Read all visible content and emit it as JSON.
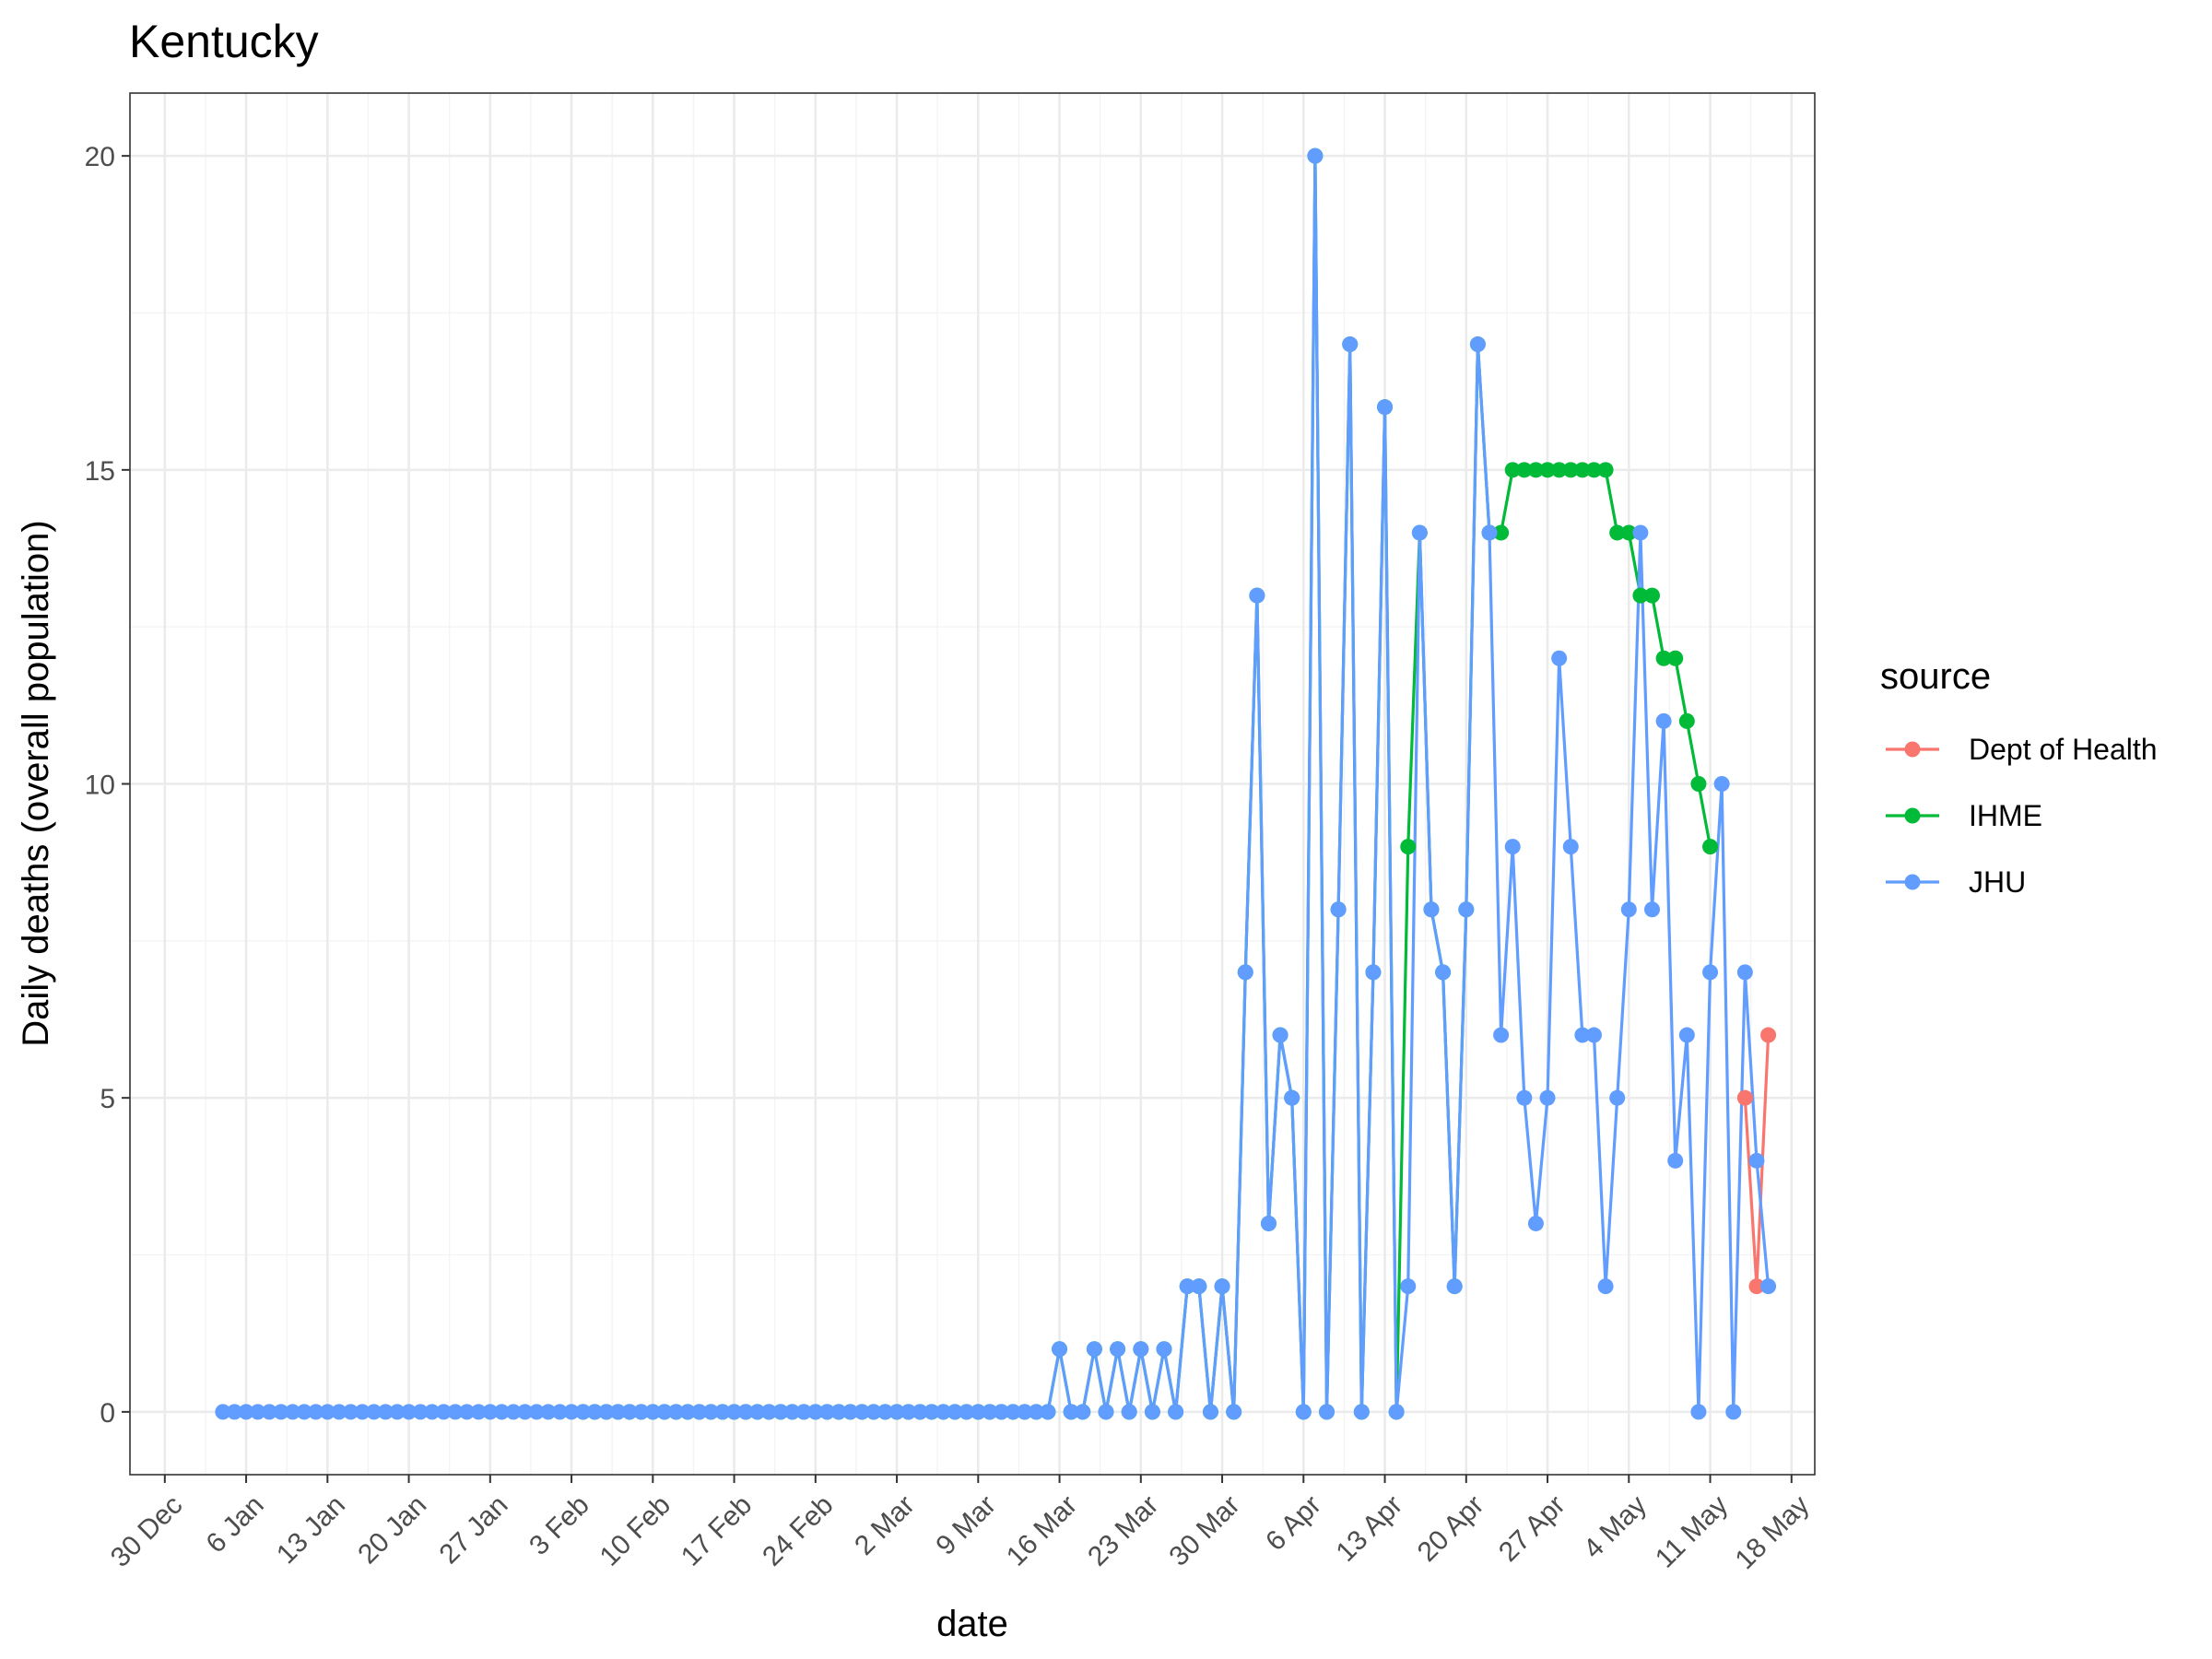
{
  "chart_data": {
    "type": "line",
    "title": "Kentucky",
    "xlabel": "date",
    "ylabel": "Daily deaths (overall population)",
    "x_axis": {
      "type": "date",
      "range": [
        "2019-12-27",
        "2020-05-20"
      ],
      "tick_dates": [
        "2019-12-30",
        "2020-01-06",
        "2020-01-13",
        "2020-01-20",
        "2020-01-27",
        "2020-02-03",
        "2020-02-10",
        "2020-02-17",
        "2020-02-24",
        "2020-03-02",
        "2020-03-09",
        "2020-03-16",
        "2020-03-23",
        "2020-03-30",
        "2020-04-06",
        "2020-04-13",
        "2020-04-20",
        "2020-04-27",
        "2020-05-04",
        "2020-05-11",
        "2020-05-18"
      ],
      "tick_labels": [
        "30 Dec",
        "6 Jan",
        "13 Jan",
        "20 Jan",
        "27 Jan",
        "3 Feb",
        "10 Feb",
        "17 Feb",
        "24 Feb",
        "2 Mar",
        "9 Mar",
        "16 Mar",
        "23 Mar",
        "30 Mar",
        "6 Apr",
        "13 Apr",
        "20 Apr",
        "27 Apr",
        "4 May",
        "11 May",
        "18 May"
      ]
    },
    "y_axis": {
      "range": [
        -1,
        21
      ],
      "ticks": [
        0,
        5,
        10,
        15,
        20
      ],
      "tick_labels": [
        "0",
        "5",
        "10",
        "15",
        "20"
      ]
    },
    "grid": true,
    "legend": {
      "title": "source",
      "position": "right"
    },
    "series": [
      {
        "name": "Dept of Health",
        "color": "#F8766D",
        "points": [
          [
            "2020-05-14",
            5
          ],
          [
            "2020-05-15",
            2
          ],
          [
            "2020-05-16",
            6
          ]
        ]
      },
      {
        "name": "IHME",
        "color": "#00BA38",
        "points": [
          [
            "2020-02-04",
            0
          ],
          [
            "2020-02-05",
            0
          ],
          [
            "2020-02-06",
            0
          ],
          [
            "2020-02-07",
            0
          ],
          [
            "2020-02-08",
            0
          ],
          [
            "2020-02-09",
            0
          ],
          [
            "2020-02-10",
            0
          ],
          [
            "2020-02-11",
            0
          ],
          [
            "2020-02-12",
            0
          ],
          [
            "2020-02-13",
            0
          ],
          [
            "2020-02-14",
            0
          ],
          [
            "2020-02-15",
            0
          ],
          [
            "2020-02-16",
            0
          ],
          [
            "2020-02-17",
            0
          ],
          [
            "2020-02-18",
            0
          ],
          [
            "2020-02-19",
            0
          ],
          [
            "2020-02-20",
            0
          ],
          [
            "2020-02-21",
            0
          ],
          [
            "2020-02-22",
            0
          ],
          [
            "2020-02-23",
            0
          ],
          [
            "2020-02-24",
            0
          ],
          [
            "2020-02-25",
            0
          ],
          [
            "2020-02-26",
            0
          ],
          [
            "2020-02-27",
            0
          ],
          [
            "2020-02-28",
            0
          ],
          [
            "2020-02-29",
            0
          ],
          [
            "2020-03-01",
            0
          ],
          [
            "2020-03-02",
            0
          ],
          [
            "2020-03-03",
            0
          ],
          [
            "2020-03-04",
            0
          ],
          [
            "2020-03-05",
            0
          ],
          [
            "2020-03-06",
            0
          ],
          [
            "2020-03-07",
            0
          ],
          [
            "2020-03-08",
            0
          ],
          [
            "2020-03-09",
            0
          ],
          [
            "2020-03-10",
            0
          ],
          [
            "2020-03-11",
            0
          ],
          [
            "2020-03-12",
            0
          ],
          [
            "2020-03-13",
            0
          ],
          [
            "2020-03-14",
            0
          ],
          [
            "2020-03-15",
            0
          ],
          [
            "2020-03-16",
            1
          ],
          [
            "2020-03-17",
            0
          ],
          [
            "2020-03-18",
            0
          ],
          [
            "2020-03-19",
            1
          ],
          [
            "2020-03-20",
            0
          ],
          [
            "2020-03-21",
            1
          ],
          [
            "2020-03-22",
            0
          ],
          [
            "2020-03-23",
            1
          ],
          [
            "2020-03-24",
            0
          ],
          [
            "2020-03-25",
            1
          ],
          [
            "2020-03-26",
            0
          ],
          [
            "2020-03-27",
            2
          ],
          [
            "2020-03-28",
            2
          ],
          [
            "2020-03-29",
            0
          ],
          [
            "2020-03-30",
            2
          ],
          [
            "2020-03-31",
            0
          ],
          [
            "2020-04-01",
            7
          ],
          [
            "2020-04-02",
            13
          ],
          [
            "2020-04-03",
            3
          ],
          [
            "2020-04-04",
            6
          ],
          [
            "2020-04-05",
            5
          ],
          [
            "2020-04-06",
            0
          ],
          [
            "2020-04-07",
            20
          ],
          [
            "2020-04-08",
            0
          ],
          [
            "2020-04-09",
            8
          ],
          [
            "2020-04-10",
            17
          ],
          [
            "2020-04-11",
            0
          ],
          [
            "2020-04-12",
            7
          ],
          [
            "2020-04-13",
            16
          ],
          [
            "2020-04-14",
            0
          ],
          [
            "2020-04-15",
            9
          ],
          [
            "2020-04-16",
            14
          ],
          [
            "2020-04-17",
            8
          ],
          [
            "2020-04-18",
            7
          ],
          [
            "2020-04-19",
            2
          ],
          [
            "2020-04-20",
            8
          ],
          [
            "2020-04-21",
            17
          ],
          [
            "2020-04-22",
            14
          ],
          [
            "2020-04-23",
            14
          ],
          [
            "2020-04-24",
            15
          ],
          [
            "2020-04-25",
            15
          ],
          [
            "2020-04-26",
            15
          ],
          [
            "2020-04-27",
            15
          ],
          [
            "2020-04-28",
            15
          ],
          [
            "2020-04-29",
            15
          ],
          [
            "2020-04-30",
            15
          ],
          [
            "2020-05-01",
            15
          ],
          [
            "2020-05-02",
            15
          ],
          [
            "2020-05-03",
            14
          ],
          [
            "2020-05-04",
            14
          ],
          [
            "2020-05-05",
            13
          ],
          [
            "2020-05-06",
            13
          ],
          [
            "2020-05-07",
            12
          ],
          [
            "2020-05-08",
            12
          ],
          [
            "2020-05-09",
            11
          ],
          [
            "2020-05-10",
            10
          ],
          [
            "2020-05-11",
            9
          ]
        ]
      },
      {
        "name": "JHU",
        "color": "#619CFF",
        "points": [
          [
            "2020-01-04",
            0
          ],
          [
            "2020-01-05",
            0
          ],
          [
            "2020-01-06",
            0
          ],
          [
            "2020-01-07",
            0
          ],
          [
            "2020-01-08",
            0
          ],
          [
            "2020-01-09",
            0
          ],
          [
            "2020-01-10",
            0
          ],
          [
            "2020-01-11",
            0
          ],
          [
            "2020-01-12",
            0
          ],
          [
            "2020-01-13",
            0
          ],
          [
            "2020-01-14",
            0
          ],
          [
            "2020-01-15",
            0
          ],
          [
            "2020-01-16",
            0
          ],
          [
            "2020-01-17",
            0
          ],
          [
            "2020-01-18",
            0
          ],
          [
            "2020-01-19",
            0
          ],
          [
            "2020-01-20",
            0
          ],
          [
            "2020-01-21",
            0
          ],
          [
            "2020-01-22",
            0
          ],
          [
            "2020-01-23",
            0
          ],
          [
            "2020-01-24",
            0
          ],
          [
            "2020-01-25",
            0
          ],
          [
            "2020-01-26",
            0
          ],
          [
            "2020-01-27",
            0
          ],
          [
            "2020-01-28",
            0
          ],
          [
            "2020-01-29",
            0
          ],
          [
            "2020-01-30",
            0
          ],
          [
            "2020-01-31",
            0
          ],
          [
            "2020-02-01",
            0
          ],
          [
            "2020-02-02",
            0
          ],
          [
            "2020-02-03",
            0
          ],
          [
            "2020-02-04",
            0
          ],
          [
            "2020-02-05",
            0
          ],
          [
            "2020-02-06",
            0
          ],
          [
            "2020-02-07",
            0
          ],
          [
            "2020-02-08",
            0
          ],
          [
            "2020-02-09",
            0
          ],
          [
            "2020-02-10",
            0
          ],
          [
            "2020-02-11",
            0
          ],
          [
            "2020-02-12",
            0
          ],
          [
            "2020-02-13",
            0
          ],
          [
            "2020-02-14",
            0
          ],
          [
            "2020-02-15",
            0
          ],
          [
            "2020-02-16",
            0
          ],
          [
            "2020-02-17",
            0
          ],
          [
            "2020-02-18",
            0
          ],
          [
            "2020-02-19",
            0
          ],
          [
            "2020-02-20",
            0
          ],
          [
            "2020-02-21",
            0
          ],
          [
            "2020-02-22",
            0
          ],
          [
            "2020-02-23",
            0
          ],
          [
            "2020-02-24",
            0
          ],
          [
            "2020-02-25",
            0
          ],
          [
            "2020-02-26",
            0
          ],
          [
            "2020-02-27",
            0
          ],
          [
            "2020-02-28",
            0
          ],
          [
            "2020-02-29",
            0
          ],
          [
            "2020-03-01",
            0
          ],
          [
            "2020-03-02",
            0
          ],
          [
            "2020-03-03",
            0
          ],
          [
            "2020-03-04",
            0
          ],
          [
            "2020-03-05",
            0
          ],
          [
            "2020-03-06",
            0
          ],
          [
            "2020-03-07",
            0
          ],
          [
            "2020-03-08",
            0
          ],
          [
            "2020-03-09",
            0
          ],
          [
            "2020-03-10",
            0
          ],
          [
            "2020-03-11",
            0
          ],
          [
            "2020-03-12",
            0
          ],
          [
            "2020-03-13",
            0
          ],
          [
            "2020-03-14",
            0
          ],
          [
            "2020-03-15",
            0
          ],
          [
            "2020-03-16",
            1
          ],
          [
            "2020-03-17",
            0
          ],
          [
            "2020-03-18",
            0
          ],
          [
            "2020-03-19",
            1
          ],
          [
            "2020-03-20",
            0
          ],
          [
            "2020-03-21",
            1
          ],
          [
            "2020-03-22",
            0
          ],
          [
            "2020-03-23",
            1
          ],
          [
            "2020-03-24",
            0
          ],
          [
            "2020-03-25",
            1
          ],
          [
            "2020-03-26",
            0
          ],
          [
            "2020-03-27",
            2
          ],
          [
            "2020-03-28",
            2
          ],
          [
            "2020-03-29",
            0
          ],
          [
            "2020-03-30",
            2
          ],
          [
            "2020-03-31",
            0
          ],
          [
            "2020-04-01",
            7
          ],
          [
            "2020-04-02",
            13
          ],
          [
            "2020-04-03",
            3
          ],
          [
            "2020-04-04",
            6
          ],
          [
            "2020-04-05",
            5
          ],
          [
            "2020-04-06",
            0
          ],
          [
            "2020-04-07",
            20
          ],
          [
            "2020-04-08",
            0
          ],
          [
            "2020-04-09",
            8
          ],
          [
            "2020-04-10",
            17
          ],
          [
            "2020-04-11",
            0
          ],
          [
            "2020-04-12",
            7
          ],
          [
            "2020-04-13",
            16
          ],
          [
            "2020-04-14",
            0
          ],
          [
            "2020-04-15",
            2
          ],
          [
            "2020-04-16",
            14
          ],
          [
            "2020-04-17",
            8
          ],
          [
            "2020-04-18",
            7
          ],
          [
            "2020-04-19",
            2
          ],
          [
            "2020-04-20",
            8
          ],
          [
            "2020-04-21",
            17
          ],
          [
            "2020-04-22",
            14
          ],
          [
            "2020-04-23",
            6
          ],
          [
            "2020-04-24",
            9
          ],
          [
            "2020-04-25",
            5
          ],
          [
            "2020-04-26",
            3
          ],
          [
            "2020-04-27",
            5
          ],
          [
            "2020-04-28",
            12
          ],
          [
            "2020-04-29",
            9
          ],
          [
            "2020-04-30",
            6
          ],
          [
            "2020-05-01",
            6
          ],
          [
            "2020-05-02",
            2
          ],
          [
            "2020-05-03",
            5
          ],
          [
            "2020-05-04",
            8
          ],
          [
            "2020-05-05",
            14
          ],
          [
            "2020-05-06",
            8
          ],
          [
            "2020-05-07",
            11
          ],
          [
            "2020-05-08",
            4
          ],
          [
            "2020-05-09",
            6
          ],
          [
            "2020-05-10",
            0
          ],
          [
            "2020-05-11",
            7
          ],
          [
            "2020-05-12",
            10
          ],
          [
            "2020-05-13",
            0
          ],
          [
            "2020-05-14",
            7
          ],
          [
            "2020-05-15",
            4
          ],
          [
            "2020-05-16",
            2
          ]
        ]
      }
    ]
  }
}
